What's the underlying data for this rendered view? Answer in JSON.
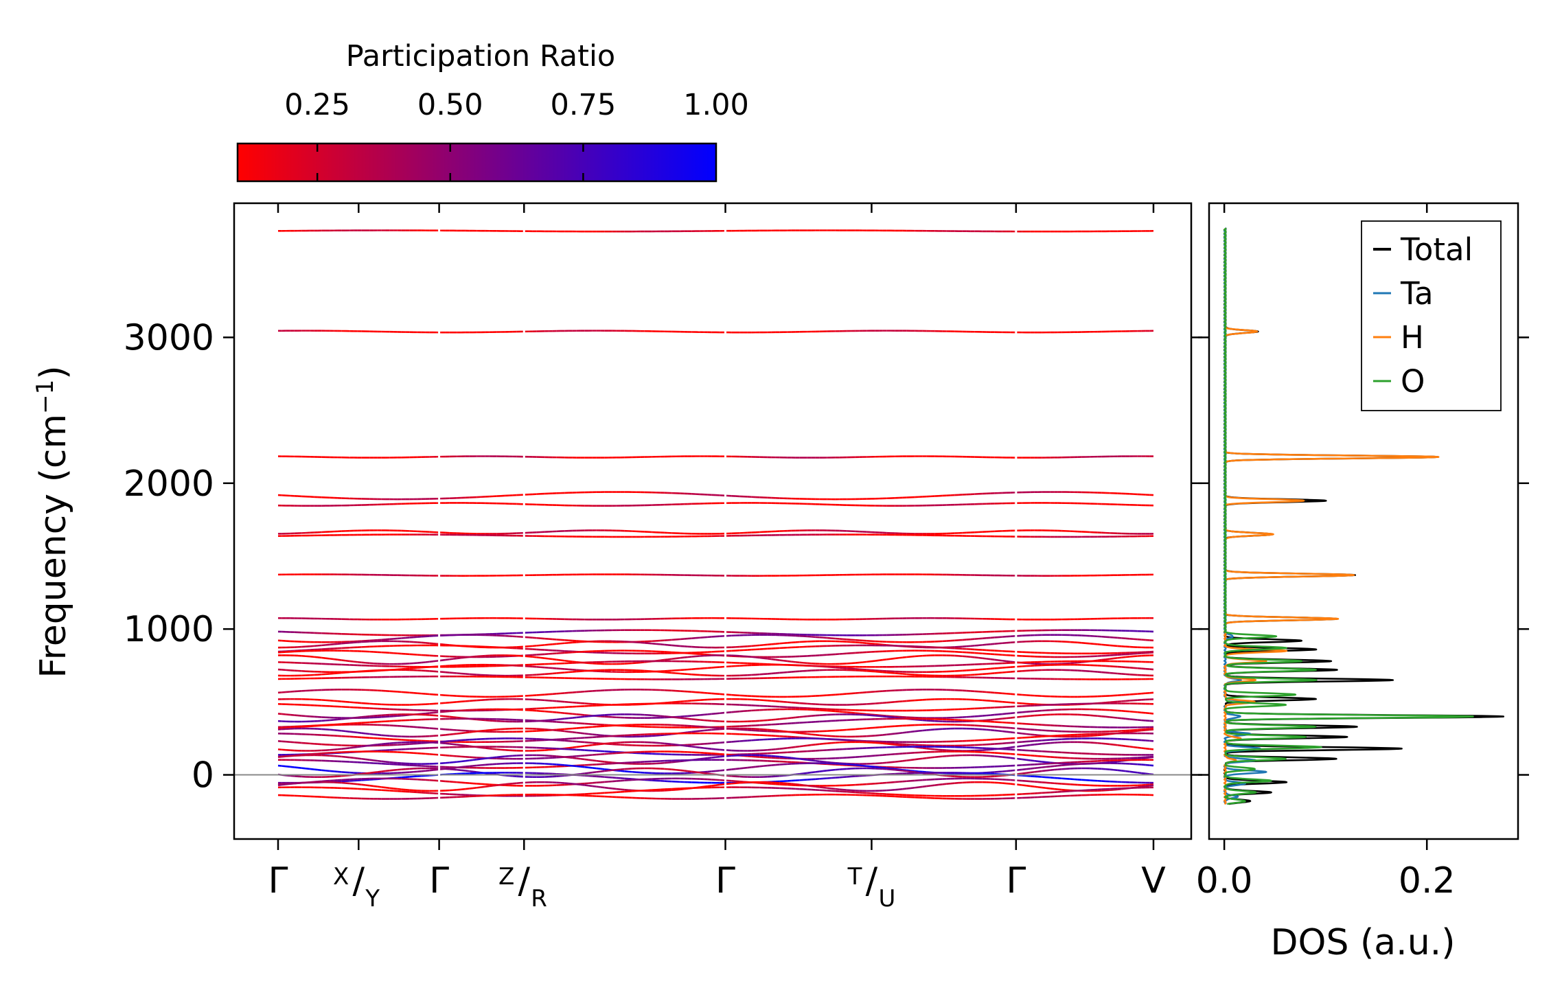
{
  "chart_data": [
    {
      "type": "line",
      "name": "phonon-band-structure",
      "ylabel_text": "Frequency (cm",
      "ylabel_sup": "−1",
      "ylabel_close": ")",
      "ylim": [
        -440,
        3920
      ],
      "yticks": [
        0,
        1000,
        2000,
        3000
      ],
      "ytick_labels": [
        "0",
        "1000",
        "2000",
        "3000"
      ],
      "kpoint_positions": [
        0,
        0.092,
        0.184,
        0.281,
        0.511,
        0.678,
        0.843,
        1.0
      ],
      "kpoint_labels": [
        {
          "main": "Γ",
          "sup": "",
          "sub": ""
        },
        {
          "main": "/",
          "sup": "X",
          "sub": "Y"
        },
        {
          "main": "Γ",
          "sup": "",
          "sub": ""
        },
        {
          "main": "/",
          "sup": "Z",
          "sub": "R"
        },
        {
          "main": "Γ",
          "sup": "",
          "sub": ""
        },
        {
          "main": "/",
          "sup": "T",
          "sub": "U"
        },
        {
          "main": "Γ",
          "sup": "",
          "sub": ""
        },
        {
          "main": "V",
          "sup": "",
          "sub": ""
        }
      ],
      "segment_breaks": [
        0.184,
        0.281,
        0.511,
        0.843
      ],
      "zero_line": 0,
      "bands": [
        {
          "freq": 3730,
          "amp": 4,
          "pr": 0.05
        },
        {
          "freq": 3040,
          "amp": 6,
          "pr": 0.06
        },
        {
          "freq": 2180,
          "amp": 5,
          "pr": 0.12
        },
        {
          "freq": 1915,
          "amp": 25,
          "pr": 0.12
        },
        {
          "freq": 1855,
          "amp": 10,
          "pr": 0.1
        },
        {
          "freq": 1665,
          "amp": 12,
          "pr": 0.12
        },
        {
          "freq": 1640,
          "amp": 8,
          "pr": 0.1
        },
        {
          "freq": 1370,
          "amp": 5,
          "pr": 0.1
        },
        {
          "freq": 1070,
          "amp": 5,
          "pr": 0.12
        },
        {
          "freq": 975,
          "amp": 18,
          "pr": 0.45
        },
        {
          "freq": 935,
          "amp": 25,
          "pr": 0.35
        },
        {
          "freq": 895,
          "amp": 22,
          "pr": 0.2
        },
        {
          "freq": 860,
          "amp": 28,
          "pr": 0.18
        },
        {
          "freq": 830,
          "amp": 22,
          "pr": 0.15
        },
        {
          "freq": 790,
          "amp": 30,
          "pr": 0.2
        },
        {
          "freq": 760,
          "amp": 20,
          "pr": 0.12
        },
        {
          "freq": 730,
          "amp": 25,
          "pr": 0.1
        },
        {
          "freq": 700,
          "amp": 20,
          "pr": 0.15
        },
        {
          "freq": 665,
          "amp": 10,
          "pr": 0.12
        },
        {
          "freq": 560,
          "amp": 25,
          "pr": 0.12
        },
        {
          "freq": 500,
          "amp": 20,
          "pr": 0.1
        },
        {
          "freq": 465,
          "amp": 25,
          "pr": 0.2
        },
        {
          "freq": 420,
          "amp": 30,
          "pr": 0.35
        },
        {
          "freq": 390,
          "amp": 25,
          "pr": 0.45
        },
        {
          "freq": 355,
          "amp": 30,
          "pr": 0.3
        },
        {
          "freq": 320,
          "amp": 25,
          "pr": 0.2
        },
        {
          "freq": 290,
          "amp": 28,
          "pr": 0.4
        },
        {
          "freq": 255,
          "amp": 30,
          "pr": 0.25
        },
        {
          "freq": 225,
          "amp": 25,
          "pr": 0.5
        },
        {
          "freq": 195,
          "amp": 30,
          "pr": 0.35
        },
        {
          "freq": 165,
          "amp": 28,
          "pr": 0.6
        },
        {
          "freq": 135,
          "amp": 25,
          "pr": 0.3
        },
        {
          "freq": 105,
          "amp": 30,
          "pr": 0.55
        },
        {
          "freq": 75,
          "amp": 28,
          "pr": 0.4
        },
        {
          "freq": 45,
          "amp": 35,
          "pr": 0.75
        },
        {
          "freq": 15,
          "amp": 30,
          "pr": 0.5
        },
        {
          "freq": -20,
          "amp": 35,
          "pr": 0.85
        },
        {
          "freq": -50,
          "amp": 25,
          "pr": 0.3
        },
        {
          "freq": -80,
          "amp": 30,
          "pr": 0.25
        },
        {
          "freq": -115,
          "amp": 30,
          "pr": 0.2
        },
        {
          "freq": -150,
          "amp": 15,
          "pr": 0.15
        }
      ]
    },
    {
      "type": "line",
      "name": "density-of-states",
      "xlabel": "DOS (a.u.)",
      "xlim": [
        -0.015,
        0.29
      ],
      "ylim": [
        -440,
        3920
      ],
      "xticks": [
        0.0,
        0.2
      ],
      "xtick_labels": [
        "0.0",
        "0.2"
      ],
      "series": [
        {
          "name": "Total",
          "color": "#000000",
          "peaks": [
            [
              3040,
              0.032
            ],
            [
              2180,
              0.21
            ],
            [
              1880,
              0.099
            ],
            [
              1650,
              0.047
            ],
            [
              1370,
              0.128
            ],
            [
              1070,
              0.111
            ],
            [
              920,
              0.075
            ],
            [
              860,
              0.09
            ],
            [
              780,
              0.105
            ],
            [
              720,
              0.11
            ],
            [
              650,
              0.165
            ],
            [
              520,
              0.09
            ],
            [
              400,
              0.275
            ],
            [
              330,
              0.13
            ],
            [
              260,
              0.12
            ],
            [
              180,
              0.175
            ],
            [
              110,
              0.11
            ],
            [
              -50,
              0.06
            ],
            [
              -120,
              0.045
            ],
            [
              -180,
              0.025
            ]
          ]
        },
        {
          "name": "Ta",
          "color": "#1f77b4",
          "peaks": [
            [
              950,
              0.008
            ],
            [
              650,
              0.015
            ],
            [
              500,
              0.02
            ],
            [
              400,
              0.015
            ],
            [
              280,
              0.025
            ],
            [
              180,
              0.035
            ],
            [
              100,
              0.03
            ],
            [
              20,
              0.04
            ],
            [
              -60,
              0.02
            ],
            [
              -150,
              0.012
            ]
          ]
        },
        {
          "name": "H",
          "color": "#ff7f0e",
          "peaks": [
            [
              3040,
              0.032
            ],
            [
              2180,
              0.21
            ],
            [
              1880,
              0.078
            ],
            [
              1650,
              0.047
            ],
            [
              1370,
              0.128
            ],
            [
              1070,
              0.111
            ],
            [
              850,
              0.06
            ],
            [
              780,
              0.04
            ],
            [
              650,
              0.03
            ],
            [
              500,
              0.03
            ],
            [
              250,
              0.015
            ],
            [
              100,
              0.01
            ]
          ]
        },
        {
          "name": "O",
          "color": "#2ca02c",
          "peaks": [
            [
              950,
              0.05
            ],
            [
              870,
              0.06
            ],
            [
              780,
              0.075
            ],
            [
              720,
              0.09
            ],
            [
              650,
              0.09
            ],
            [
              550,
              0.07
            ],
            [
              480,
              0.06
            ],
            [
              400,
              0.245
            ],
            [
              330,
              0.09
            ],
            [
              260,
              0.08
            ],
            [
              190,
              0.095
            ],
            [
              110,
              0.06
            ],
            [
              40,
              0.03
            ],
            [
              -40,
              0.045
            ],
            [
              -120,
              0.03
            ],
            [
              -180,
              0.02
            ]
          ]
        }
      ],
      "legend": {
        "placement": "top-right",
        "entries": [
          "Total",
          "Ta",
          "H",
          "O"
        ]
      }
    }
  ],
  "colorbar": {
    "title": "Participation Ratio",
    "range": [
      0.1,
      1.0
    ],
    "ticks": [
      0.25,
      0.5,
      0.75,
      1.0
    ],
    "tick_labels": [
      "0.25",
      "0.50",
      "0.75",
      "1.00"
    ],
    "color_low": "#ff0000",
    "color_high": "#0000ff"
  }
}
